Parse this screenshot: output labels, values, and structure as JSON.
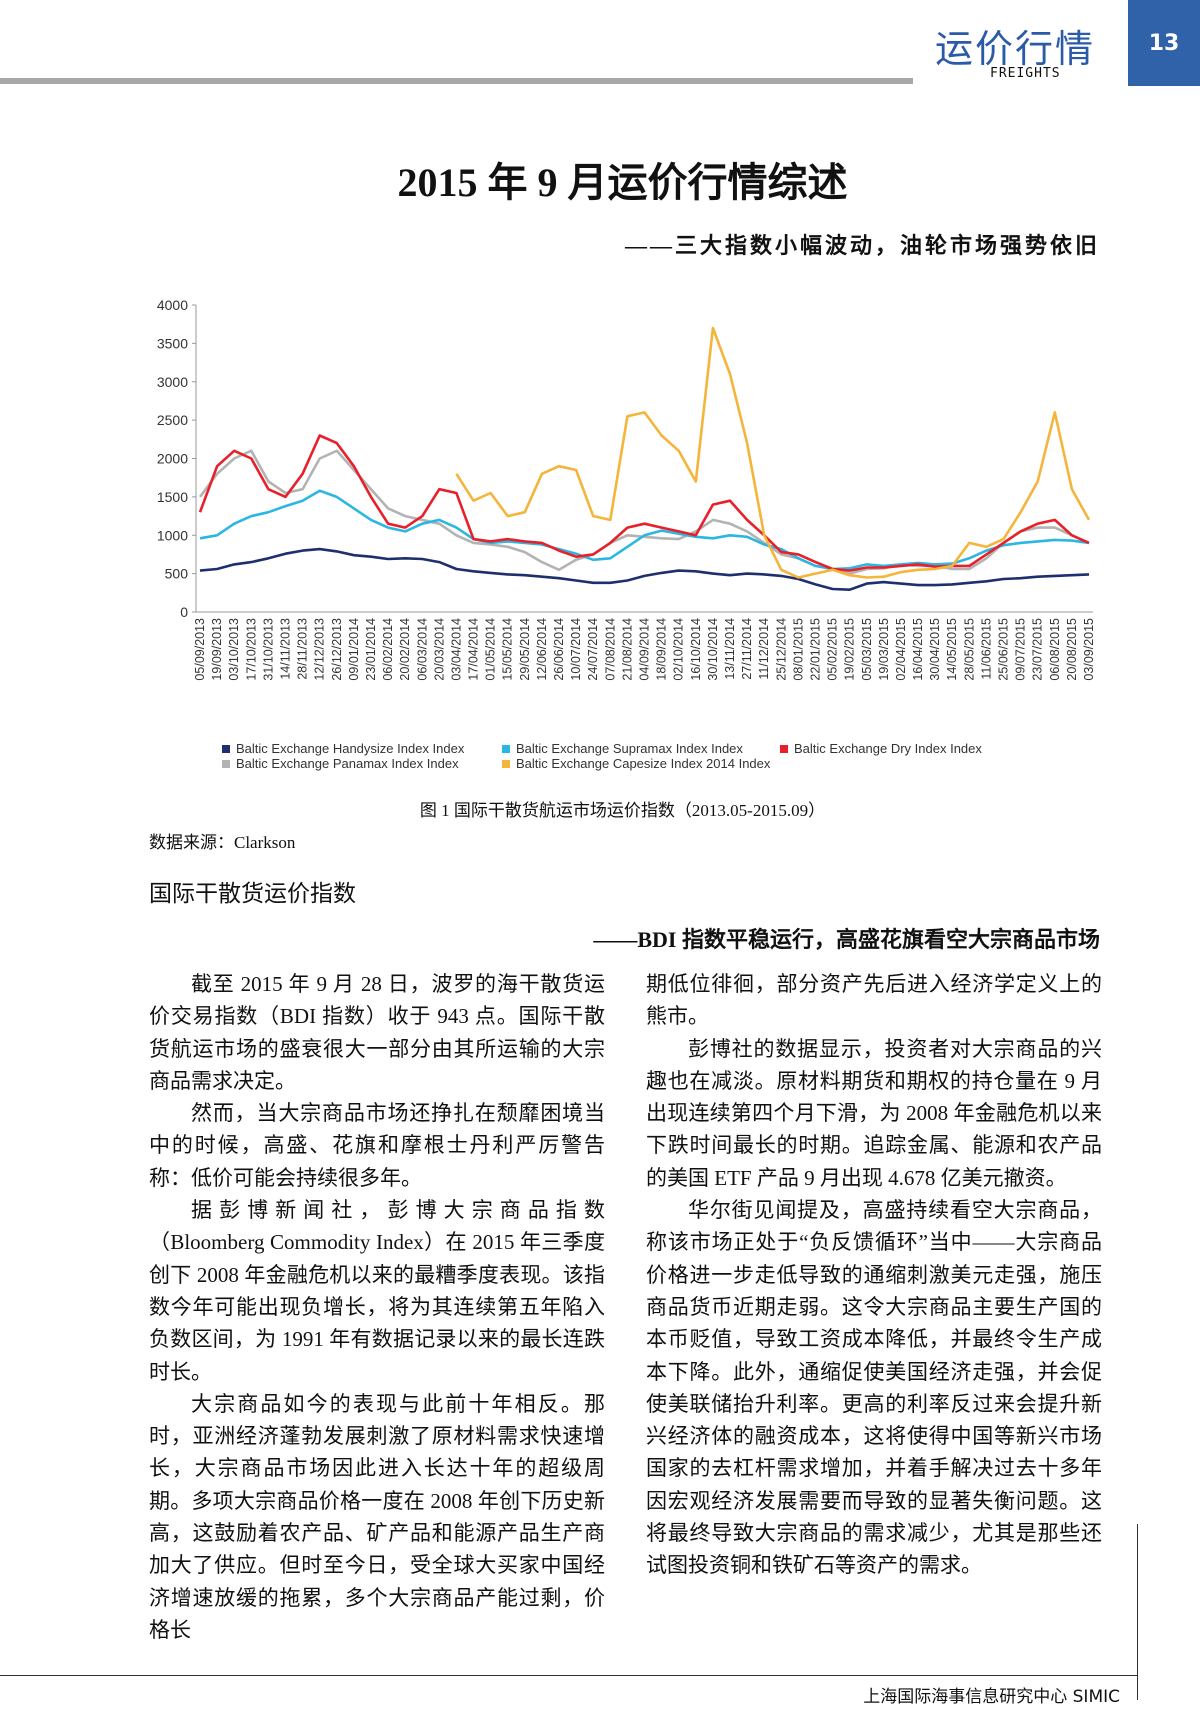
{
  "header": {
    "section": "运价行情",
    "section_en": "FREIGHTS",
    "page": "13"
  },
  "title": "2015 年 9 月运价行情综述",
  "subtitle": "——三大指数小幅波动，油轮市场强势依旧",
  "chart_data": {
    "type": "line",
    "categories": [
      "05/09/2013",
      "19/09/2013",
      "03/10/2013",
      "17/10/2013",
      "31/10/2013",
      "14/11/2013",
      "28/11/2013",
      "12/12/2013",
      "26/12/2013",
      "09/01/2014",
      "23/01/2014",
      "06/02/2014",
      "20/02/2014",
      "06/03/2014",
      "20/03/2014",
      "03/04/2014",
      "17/04/2014",
      "01/05/2014",
      "15/05/2014",
      "29/05/2014",
      "12/06/2014",
      "26/06/2014",
      "10/07/2014",
      "24/07/2014",
      "07/08/2014",
      "21/08/2014",
      "04/09/2014",
      "18/09/2014",
      "02/10/2014",
      "16/10/2014",
      "30/10/2014",
      "13/11/2014",
      "27/11/2014",
      "11/12/2014",
      "25/12/2014",
      "08/01/2015",
      "22/01/2015",
      "05/02/2015",
      "19/02/2015",
      "05/03/2015",
      "19/03/2015",
      "02/04/2015",
      "16/04/2015",
      "30/04/2015",
      "14/05/2015",
      "28/05/2015",
      "11/06/2015",
      "25/06/2015",
      "09/07/2015",
      "23/07/2015",
      "06/08/2015",
      "20/08/2015",
      "03/09/2015"
    ],
    "series": [
      {
        "name": "Baltic Exchange Handysize Index Index",
        "color": "#1f2f6e",
        "values": [
          540,
          560,
          620,
          650,
          700,
          760,
          800,
          820,
          790,
          740,
          720,
          690,
          700,
          690,
          650,
          560,
          530,
          510,
          490,
          480,
          460,
          440,
          410,
          380,
          380,
          410,
          470,
          510,
          540,
          530,
          500,
          480,
          500,
          490,
          470,
          430,
          360,
          300,
          290,
          370,
          390,
          370,
          350,
          350,
          360,
          380,
          400,
          430,
          440,
          460,
          470,
          480,
          490
        ]
      },
      {
        "name": "Baltic Exchange Supramax Index Index",
        "color": "#2cb6e3",
        "values": [
          960,
          1000,
          1150,
          1250,
          1300,
          1380,
          1450,
          1580,
          1500,
          1350,
          1200,
          1100,
          1050,
          1150,
          1200,
          1100,
          950,
          900,
          920,
          900,
          880,
          820,
          760,
          680,
          700,
          850,
          1000,
          1060,
          1020,
          980,
          960,
          1000,
          980,
          880,
          820,
          700,
          600,
          560,
          570,
          620,
          600,
          620,
          640,
          620,
          630,
          700,
          800,
          870,
          900,
          920,
          940,
          930,
          900
        ]
      },
      {
        "name": "Baltic Exchange Dry Index Index",
        "color": "#e8202a",
        "values": [
          1300,
          1900,
          2100,
          2000,
          1600,
          1500,
          1800,
          2300,
          2200,
          1900,
          1500,
          1150,
          1100,
          1250,
          1600,
          1550,
          950,
          920,
          950,
          920,
          900,
          800,
          720,
          750,
          900,
          1100,
          1150,
          1100,
          1050,
          1000,
          1400,
          1450,
          1200,
          1000,
          780,
          750,
          650,
          560,
          540,
          580,
          580,
          600,
          620,
          590,
          600,
          600,
          750,
          900,
          1050,
          1150,
          1200,
          1000,
          900
        ]
      },
      {
        "name": "Baltic Exchange Panamax Index Index",
        "color": "#b3b3b3",
        "values": [
          1500,
          1800,
          2000,
          2100,
          1700,
          1550,
          1600,
          2000,
          2100,
          1850,
          1600,
          1350,
          1250,
          1200,
          1150,
          1000,
          900,
          880,
          850,
          780,
          650,
          550,
          680,
          750,
          900,
          1000,
          980,
          960,
          950,
          1050,
          1200,
          1150,
          1050,
          900,
          750,
          700,
          600,
          560,
          500,
          560,
          570,
          620,
          600,
          600,
          560,
          560,
          700,
          900,
          1050,
          1100,
          1100,
          1000,
          900
        ]
      },
      {
        "name": "Baltic Exchange Capesize Index 2014 Index",
        "color": "#f5b43a",
        "values": [
          null,
          null,
          null,
          null,
          null,
          null,
          null,
          null,
          null,
          null,
          null,
          null,
          null,
          null,
          null,
          1800,
          1450,
          1550,
          1250,
          1300,
          1800,
          1900,
          1850,
          1250,
          1200,
          2550,
          2600,
          2300,
          2100,
          1700,
          3700,
          3100,
          2200,
          1000,
          550,
          450,
          500,
          550,
          480,
          450,
          460,
          520,
          550,
          560,
          600,
          900,
          850,
          950,
          1300,
          1700,
          2600,
          1600,
          1200
        ]
      }
    ],
    "ylim": [
      0,
      4000
    ],
    "yticks": [
      0,
      500,
      1000,
      1500,
      2000,
      2500,
      3000,
      3500,
      4000
    ],
    "grid": false
  },
  "caption": "图 1  国际干散货航运市场运价指数（2013.05-2015.09）",
  "source": "数据来源：Clarkson",
  "section_heading": "国际干散货运价指数",
  "section_subheading": "——BDI 指数平稳运行，高盛花旗看空大宗商品市场",
  "columns": [
    [
      "截至 2015 年 9 月 28 日，波罗的海干散货运价交易指数（BDI 指数）收于 943 点。国际干散货航运市场的盛衰很大一部分由其所运输的大宗商品需求决定。",
      "然而，当大宗商品市场还挣扎在颓靡困境当中的时候，高盛、花旗和摩根士丹利严厉警告称：低价可能会持续很多年。",
      "据彭博新闻社，彭博大宗商品指数（Bloomberg Commodity Index）在 2015 年三季度创下 2008 年金融危机以来的最糟季度表现。该指数今年可能出现负增长，将为其连续第五年陷入负数区间，为 1991 年有数据记录以来的最长连跌时长。",
      "大宗商品如今的表现与此前十年相反。那时，亚洲经济蓬勃发展刺激了原材料需求快速增长，大宗商品市场因此进入长达十年的超级周期。多项大宗商品价格一度在 2008 年创下历史新高，这鼓励着农产品、矿产品和能源产品生产商加大了供应。但时至今日，受全球大买家中国经济增速放缓的拖累，多个大宗商品产能过剩，价格长"
    ],
    [
      "期低位徘徊，部分资产先后进入经济学定义上的熊市。",
      "彭博社的数据显示，投资者对大宗商品的兴趣也在减淡。原材料期货和期权的持仓量在 9 月出现连续第四个月下滑，为 2008 年金融危机以来下跌时间最长的时期。追踪金属、能源和农产品的美国 ETF 产品 9 月出现 4.678 亿美元撤资。",
      "华尔街见闻提及，高盛持续看空大宗商品，称该市场正处于“负反馈循环”当中——大宗商品价格进一步走低导致的通缩刺激美元走强，施压商品货币近期走弱。这令大宗商品主要生产国的本币贬值，导致工资成本降低，并最终令生产成本下降。此外，通缩促使美国经济走强，并会促使美联储抬升利率。更高的利率反过来会提升新兴经济体的融资成本，这将使得中国等新兴市场国家的去杠杆需求增加，并着手解决过去十多年因宏观经济发展需要而导致的显著失衡问题。这将最终导致大宗商品的需求减少，尤其是那些还试图投资铜和铁矿石等资产的需求。"
    ]
  ],
  "footer": "上海国际海事信息研究中心 SIMIC"
}
